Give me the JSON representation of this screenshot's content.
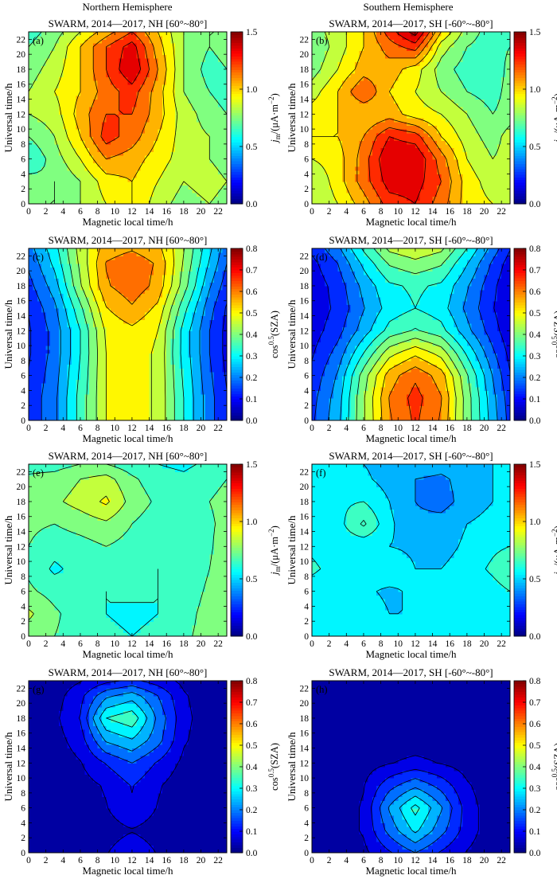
{
  "figure": {
    "columns": [
      "Northern Hemisphere",
      "Southern Hemisphere"
    ],
    "common_xlabel": "Magnetic local time/h",
    "common_ylabel": "Universal time/h",
    "x_ticks": [
      "0",
      "2",
      "4",
      "6",
      "8",
      "10",
      "12",
      "14",
      "16",
      "18",
      "20",
      "22"
    ],
    "y_ticks": [
      "0",
      "2",
      "4",
      "6",
      "8",
      "10",
      "12",
      "14",
      "16",
      "18",
      "20",
      "22"
    ]
  },
  "colorbars": {
    "jm": {
      "label_main": "j",
      "label_sub": "m",
      "label_unit": "/(μA·m",
      "label_exp": "−2",
      "label_close": ")",
      "ticks": [
        "0.0",
        "0.5",
        "1.0",
        "1.5"
      ],
      "range": [
        0,
        1.5
      ]
    },
    "sza": {
      "label_main": "cos",
      "label_exp": "0.5",
      "label_rest": "(SZA)",
      "ticks": [
        "0.0",
        "0.1",
        "0.2",
        "0.3",
        "0.4",
        "0.5",
        "0.6",
        "0.7",
        "0.8"
      ],
      "range": [
        0,
        0.8
      ]
    }
  },
  "chart_data": [
    {
      "type": "heatmap",
      "panel": "(a)",
      "title": "SWARM, 2014—2017, NH [60°~80°]",
      "xlabel": "Magnetic local time/h",
      "ylabel": "Universal time/h",
      "xlim": [
        0,
        23
      ],
      "ylim": [
        0,
        23
      ],
      "colorbar": "jm",
      "zlim": [
        0,
        1.5
      ],
      "x": [
        0,
        3,
        6,
        9,
        12,
        15,
        18,
        21,
        23
      ],
      "y": [
        0,
        3,
        6,
        9,
        12,
        15,
        18,
        21,
        23
      ],
      "z": [
        [
          0.7,
          0.7,
          0.8,
          0.9,
          1.0,
          0.85,
          0.75,
          0.8,
          0.75
        ],
        [
          0.75,
          0.7,
          0.8,
          0.95,
          1.0,
          0.9,
          0.8,
          0.85,
          0.8
        ],
        [
          0.6,
          0.75,
          0.9,
          1.1,
          1.05,
          0.95,
          0.85,
          0.8,
          0.75
        ],
        [
          0.7,
          0.8,
          1.0,
          1.25,
          1.15,
          1.0,
          0.85,
          0.8,
          0.75
        ],
        [
          0.8,
          0.85,
          1.05,
          1.2,
          1.2,
          1.05,
          0.85,
          0.75,
          0.7
        ],
        [
          0.8,
          0.9,
          1.0,
          1.15,
          1.25,
          1.05,
          0.8,
          0.7,
          0.65
        ],
        [
          0.75,
          0.85,
          1.0,
          1.2,
          1.4,
          1.1,
          0.8,
          0.65,
          0.7
        ],
        [
          0.7,
          0.8,
          1.0,
          1.2,
          1.35,
          1.05,
          0.8,
          0.7,
          0.75
        ],
        [
          0.65,
          0.75,
          0.9,
          1.05,
          1.2,
          1.0,
          0.8,
          0.7,
          0.7
        ]
      ]
    },
    {
      "type": "heatmap",
      "panel": "(b)",
      "title": "SWARM, 2014—2017, SH [-60°~-80°]",
      "xlabel": "Magnetic local time/h",
      "ylabel": "Universal time/h",
      "xlim": [
        0,
        23
      ],
      "ylim": [
        0,
        23
      ],
      "colorbar": "jm",
      "zlim": [
        0,
        1.5
      ],
      "x": [
        0,
        3,
        6,
        9,
        12,
        15,
        18,
        21,
        23
      ],
      "y": [
        0,
        3,
        6,
        9,
        12,
        15,
        18,
        21,
        23
      ],
      "z": [
        [
          0.8,
          0.9,
          1.05,
          1.25,
          1.3,
          1.15,
          0.95,
          0.9,
          0.85
        ],
        [
          0.8,
          0.95,
          1.15,
          1.35,
          1.35,
          1.2,
          0.95,
          0.85,
          0.8
        ],
        [
          0.9,
          0.95,
          1.15,
          1.4,
          1.4,
          1.15,
          0.9,
          0.8,
          0.85
        ],
        [
          1.0,
          1.0,
          1.1,
          1.3,
          1.25,
          1.0,
          0.85,
          0.75,
          0.85
        ],
        [
          0.95,
          1.0,
          1.0,
          1.05,
          0.95,
          0.9,
          0.8,
          0.7,
          0.75
        ],
        [
          0.85,
          1.0,
          1.2,
          1.0,
          0.9,
          0.8,
          0.7,
          0.65,
          0.75
        ],
        [
          0.75,
          0.9,
          1.05,
          1.05,
          0.95,
          0.75,
          0.65,
          0.6,
          0.75
        ],
        [
          0.7,
          0.85,
          1.0,
          1.15,
          1.25,
          0.85,
          0.7,
          0.65,
          0.7
        ],
        [
          0.75,
          0.85,
          1.0,
          1.25,
          1.45,
          1.0,
          0.75,
          0.65,
          0.7
        ]
      ]
    },
    {
      "type": "heatmap",
      "panel": "(c)",
      "title": "SWARM, 2014—2017, NH [60°~80°]",
      "xlabel": "Magnetic local time/h",
      "ylabel": "Universal time/h",
      "xlim": [
        0,
        23
      ],
      "ylim": [
        0,
        23
      ],
      "colorbar": "sza",
      "zlim": [
        0,
        0.8
      ],
      "x": [
        0,
        3,
        6,
        9,
        12,
        15,
        18,
        21,
        23
      ],
      "y": [
        0,
        3,
        6,
        9,
        12,
        15,
        18,
        21,
        23
      ],
      "z": [
        [
          0.12,
          0.2,
          0.34,
          0.48,
          0.51,
          0.47,
          0.32,
          0.18,
          0.11
        ],
        [
          0.12,
          0.2,
          0.34,
          0.48,
          0.51,
          0.47,
          0.32,
          0.18,
          0.11
        ],
        [
          0.11,
          0.19,
          0.33,
          0.48,
          0.51,
          0.47,
          0.31,
          0.17,
          0.1
        ],
        [
          0.1,
          0.18,
          0.32,
          0.48,
          0.51,
          0.47,
          0.3,
          0.16,
          0.09
        ],
        [
          0.1,
          0.18,
          0.32,
          0.49,
          0.52,
          0.48,
          0.3,
          0.16,
          0.09
        ],
        [
          0.11,
          0.2,
          0.36,
          0.53,
          0.58,
          0.52,
          0.34,
          0.18,
          0.1
        ],
        [
          0.14,
          0.24,
          0.42,
          0.58,
          0.62,
          0.57,
          0.4,
          0.22,
          0.13
        ],
        [
          0.17,
          0.28,
          0.44,
          0.59,
          0.62,
          0.58,
          0.42,
          0.26,
          0.16
        ],
        [
          0.19,
          0.3,
          0.45,
          0.56,
          0.58,
          0.55,
          0.43,
          0.28,
          0.18
        ]
      ]
    },
    {
      "type": "heatmap",
      "panel": "(d)",
      "title": "SWARM, 2014—2017, SH [-60°~-80°]",
      "xlabel": "Magnetic local time/h",
      "ylabel": "Universal time/h",
      "xlim": [
        0,
        23
      ],
      "ylim": [
        0,
        23
      ],
      "colorbar": "sza",
      "zlim": [
        0,
        0.8
      ],
      "x": [
        0,
        3,
        6,
        9,
        12,
        15,
        18,
        21,
        23
      ],
      "y": [
        0,
        3,
        6,
        9,
        12,
        15,
        18,
        21,
        23
      ],
      "z": [
        [
          0.15,
          0.25,
          0.42,
          0.58,
          0.65,
          0.58,
          0.4,
          0.24,
          0.14
        ],
        [
          0.14,
          0.24,
          0.42,
          0.59,
          0.66,
          0.59,
          0.4,
          0.23,
          0.13
        ],
        [
          0.12,
          0.22,
          0.4,
          0.56,
          0.63,
          0.56,
          0.38,
          0.21,
          0.11
        ],
        [
          0.1,
          0.18,
          0.32,
          0.46,
          0.52,
          0.46,
          0.31,
          0.17,
          0.09
        ],
        [
          0.08,
          0.14,
          0.24,
          0.34,
          0.38,
          0.34,
          0.23,
          0.13,
          0.07
        ],
        [
          0.07,
          0.12,
          0.21,
          0.29,
          0.32,
          0.29,
          0.2,
          0.11,
          0.06
        ],
        [
          0.07,
          0.13,
          0.23,
          0.31,
          0.33,
          0.31,
          0.22,
          0.12,
          0.06
        ],
        [
          0.09,
          0.16,
          0.28,
          0.38,
          0.41,
          0.38,
          0.27,
          0.15,
          0.08
        ],
        [
          0.12,
          0.2,
          0.33,
          0.44,
          0.47,
          0.44,
          0.32,
          0.19,
          0.11
        ]
      ]
    },
    {
      "type": "heatmap",
      "panel": "(e)",
      "title": "SWARM, 2014—2017, NH [60°~80°]",
      "xlabel": "Magnetic local time/h",
      "ylabel": "Universal time/h",
      "xlim": [
        0,
        23
      ],
      "ylim": [
        0,
        23
      ],
      "colorbar": "jm",
      "zlim": [
        0,
        1.5
      ],
      "x": [
        0,
        3,
        6,
        9,
        12,
        15,
        18,
        21,
        23
      ],
      "y": [
        0,
        3,
        6,
        9,
        12,
        15,
        18,
        21,
        23
      ],
      "z": [
        [
          0.75,
          0.7,
          0.65,
          0.62,
          0.6,
          0.62,
          0.68,
          0.74,
          0.78
        ],
        [
          0.82,
          0.72,
          0.64,
          0.6,
          0.58,
          0.6,
          0.66,
          0.74,
          0.8
        ],
        [
          0.72,
          0.66,
          0.62,
          0.6,
          0.62,
          0.6,
          0.64,
          0.72,
          0.76
        ],
        [
          0.68,
          0.58,
          0.64,
          0.66,
          0.64,
          0.6,
          0.62,
          0.7,
          0.8
        ],
        [
          0.7,
          0.64,
          0.66,
          0.7,
          0.66,
          0.62,
          0.62,
          0.68,
          0.78
        ],
        [
          0.72,
          0.7,
          0.74,
          0.78,
          0.7,
          0.64,
          0.64,
          0.68,
          0.74
        ],
        [
          0.76,
          0.78,
          0.84,
          0.92,
          0.76,
          0.68,
          0.66,
          0.7,
          0.74
        ],
        [
          0.72,
          0.74,
          0.8,
          0.84,
          0.72,
          0.64,
          0.62,
          0.66,
          0.7
        ],
        [
          0.66,
          0.66,
          0.7,
          0.7,
          0.64,
          0.6,
          0.58,
          0.62,
          0.66
        ]
      ]
    },
    {
      "type": "heatmap",
      "panel": "(f)",
      "title": "SWARM, 2014—2017, SH [-60°~-80°]",
      "xlabel": "Magnetic local time/h",
      "ylabel": "Universal time/h",
      "xlim": [
        0,
        23
      ],
      "ylim": [
        0,
        23
      ],
      "colorbar": "jm",
      "zlim": [
        0,
        1.5
      ],
      "x": [
        0,
        3,
        6,
        9,
        12,
        15,
        18,
        21,
        23
      ],
      "y": [
        0,
        3,
        6,
        9,
        12,
        15,
        18,
        21,
        23
      ],
      "z": [
        [
          0.5,
          0.55,
          0.52,
          0.54,
          0.52,
          0.5,
          0.52,
          0.54,
          0.56
        ],
        [
          0.52,
          0.6,
          0.56,
          0.5,
          0.5,
          0.52,
          0.5,
          0.52,
          0.56
        ],
        [
          0.55,
          0.52,
          0.52,
          0.48,
          0.52,
          0.55,
          0.52,
          0.56,
          0.6
        ],
        [
          0.62,
          0.56,
          0.54,
          0.58,
          0.5,
          0.5,
          0.55,
          0.62,
          0.68
        ],
        [
          0.58,
          0.54,
          0.52,
          0.5,
          0.48,
          0.46,
          0.52,
          0.58,
          0.6
        ],
        [
          0.56,
          0.56,
          0.72,
          0.52,
          0.42,
          0.44,
          0.5,
          0.54,
          0.56
        ],
        [
          0.6,
          0.58,
          0.6,
          0.5,
          0.4,
          0.36,
          0.44,
          0.5,
          0.54
        ],
        [
          0.58,
          0.54,
          0.52,
          0.46,
          0.4,
          0.38,
          0.44,
          0.5,
          0.54
        ],
        [
          0.54,
          0.52,
          0.5,
          0.46,
          0.46,
          0.44,
          0.46,
          0.5,
          0.52
        ]
      ]
    },
    {
      "type": "heatmap",
      "panel": "(g)",
      "title": "SWARM, 2014—2017, NH [60°~80°]",
      "xlabel": "Magnetic local time/h",
      "ylabel": "Universal time/h",
      "xlim": [
        0,
        23
      ],
      "ylim": [
        0,
        23
      ],
      "colorbar": "sza",
      "zlim": [
        0,
        0.8
      ],
      "x": [
        0,
        3,
        6,
        9,
        12,
        15,
        18,
        21,
        23
      ],
      "y": [
        0,
        3,
        6,
        9,
        12,
        15,
        18,
        21,
        23
      ],
      "z": [
        [
          0.02,
          0.02,
          0.02,
          0.05,
          0.09,
          0.05,
          0.02,
          0.02,
          0.02
        ],
        [
          0.02,
          0.02,
          0.02,
          0.03,
          0.05,
          0.03,
          0.02,
          0.02,
          0.02
        ],
        [
          0.02,
          0.02,
          0.02,
          0.05,
          0.1,
          0.05,
          0.02,
          0.02,
          0.02
        ],
        [
          0.02,
          0.02,
          0.03,
          0.06,
          0.11,
          0.06,
          0.02,
          0.02,
          0.02
        ],
        [
          0.02,
          0.02,
          0.05,
          0.11,
          0.16,
          0.1,
          0.04,
          0.02,
          0.02
        ],
        [
          0.02,
          0.03,
          0.08,
          0.22,
          0.26,
          0.18,
          0.06,
          0.02,
          0.02
        ],
        [
          0.02,
          0.04,
          0.11,
          0.32,
          0.36,
          0.2,
          0.07,
          0.02,
          0.02
        ],
        [
          0.02,
          0.03,
          0.09,
          0.2,
          0.24,
          0.16,
          0.06,
          0.02,
          0.02
        ],
        [
          0.02,
          0.02,
          0.05,
          0.09,
          0.12,
          0.08,
          0.04,
          0.02,
          0.02
        ]
      ]
    },
    {
      "type": "heatmap",
      "panel": "(h)",
      "title": "SWARM, 2014—2017, SH [-60°~-80°]",
      "xlabel": "Magnetic local time/h",
      "ylabel": "Universal time/h",
      "xlim": [
        0,
        23
      ],
      "ylim": [
        0,
        23
      ],
      "colorbar": "sza",
      "zlim": [
        0,
        0.8
      ],
      "x": [
        0,
        3,
        6,
        9,
        12,
        15,
        18,
        21,
        23
      ],
      "y": [
        0,
        3,
        6,
        9,
        12,
        15,
        18,
        21,
        23
      ],
      "z": [
        [
          0.02,
          0.02,
          0.04,
          0.1,
          0.16,
          0.1,
          0.05,
          0.02,
          0.02
        ],
        [
          0.02,
          0.02,
          0.06,
          0.18,
          0.28,
          0.18,
          0.08,
          0.02,
          0.02
        ],
        [
          0.02,
          0.02,
          0.06,
          0.22,
          0.34,
          0.22,
          0.08,
          0.02,
          0.02
        ],
        [
          0.02,
          0.02,
          0.05,
          0.14,
          0.2,
          0.14,
          0.06,
          0.02,
          0.02
        ],
        [
          0.02,
          0.02,
          0.03,
          0.05,
          0.07,
          0.05,
          0.03,
          0.02,
          0.02
        ],
        [
          0.02,
          0.02,
          0.02,
          0.02,
          0.02,
          0.02,
          0.02,
          0.02,
          0.02
        ],
        [
          0.02,
          0.02,
          0.02,
          0.02,
          0.02,
          0.02,
          0.02,
          0.02,
          0.02
        ],
        [
          0.02,
          0.02,
          0.02,
          0.02,
          0.02,
          0.02,
          0.02,
          0.02,
          0.02
        ],
        [
          0.02,
          0.02,
          0.02,
          0.03,
          0.04,
          0.03,
          0.02,
          0.02,
          0.02
        ]
      ]
    }
  ]
}
